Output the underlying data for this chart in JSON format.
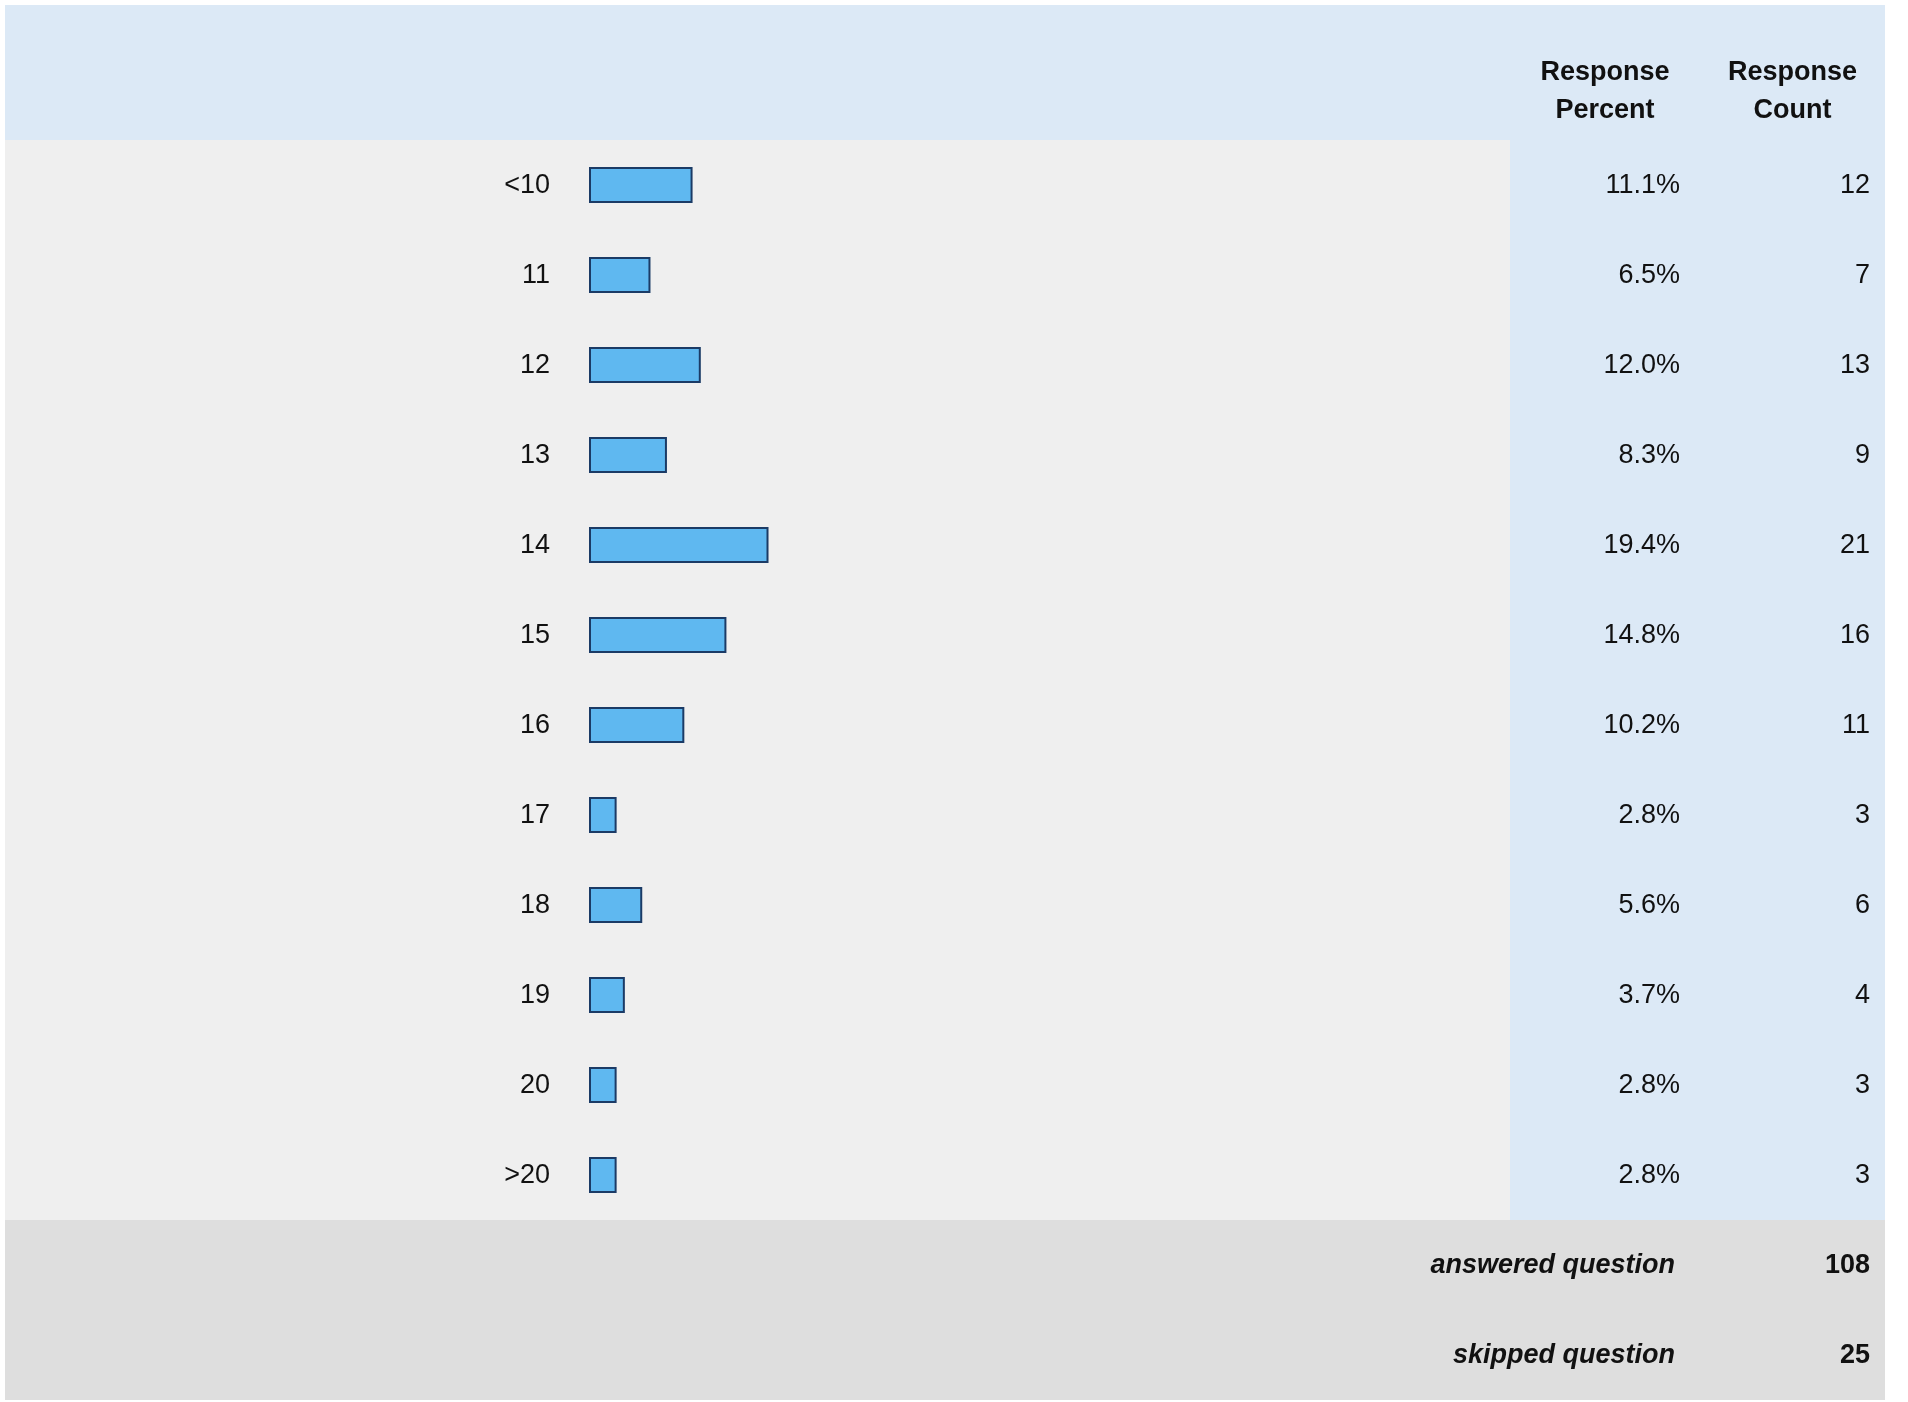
{
  "chart_data": {
    "type": "bar",
    "orientation": "horizontal",
    "color": "#5fb8f0",
    "categories": [
      "<10",
      "11",
      "12",
      "13",
      "14",
      "15",
      "16",
      "17",
      "18",
      "19",
      "20",
      ">20"
    ],
    "values": [
      11.1,
      6.5,
      12.0,
      8.3,
      19.4,
      14.8,
      10.2,
      2.8,
      5.6,
      3.7,
      2.8,
      2.8
    ],
    "value_labels": [
      "11.1%",
      "6.5%",
      "12.0%",
      "8.3%",
      "19.4%",
      "14.8%",
      "10.2%",
      "2.8%",
      "5.6%",
      "3.7%",
      "2.8%",
      "2.8%"
    ],
    "annotations": [
      "Response Percent",
      "Response Count",
      "12",
      "7",
      "13",
      "9",
      "21",
      "16",
      "11",
      "3",
      "6",
      "4",
      "3",
      "3",
      "answered question",
      "108",
      "skipped question",
      "25"
    ]
  }
}
